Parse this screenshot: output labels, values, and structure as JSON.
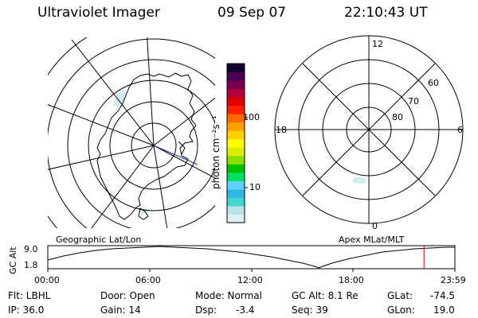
{
  "header": {
    "title": "Ultraviolet Imager",
    "date": "09 Sep 07",
    "time": "22:10:43 UT"
  },
  "colorbar": {
    "unit_label": "photon cm⁻²s⁻¹",
    "tick_high": "100",
    "tick_low": "10",
    "colors": [
      "#dff1f4",
      "#b9e4ea",
      "#43d6cf",
      "#2fb8e6",
      "#5fd0ff",
      "#00e060",
      "#00c000",
      "#88e000",
      "#d8f000",
      "#ffff00",
      "#ffd000",
      "#ffa000",
      "#ff6a00",
      "#ff2000",
      "#e00000",
      "#b4003c",
      "#780050",
      "#4a0050",
      "#120030"
    ]
  },
  "left_map": {
    "caption": "Geographic Lat/Lon"
  },
  "right_map": {
    "caption": "Apex MLat/MLT",
    "mlt_labels": {
      "top": "12",
      "left": "18",
      "right": "6",
      "bottom": "0"
    },
    "lat_labels": [
      "60",
      "70",
      "80"
    ]
  },
  "altitude_plot": {
    "ylabel": "GC Alt",
    "ytick_high": "9.0",
    "ytick_low": "1.8",
    "xticks": [
      "00:00",
      "06:00",
      "12:00",
      "18:00",
      "23:59"
    ],
    "current_time_marker_hours": 22.18
  },
  "footer": {
    "filter": "Flt: LBHL",
    "ip": "IP: 36.0",
    "door": "Door: Open",
    "gain": "Gain: 14",
    "mode": "Mode: Normal",
    "dsp_label": "Dsp:",
    "dsp_value": "-3.4",
    "gc_alt": "GC Alt: 8.1 Re",
    "seq": "Seq: 39",
    "glat_label": "GLat:",
    "glat_value": "-74.5",
    "glon_label": "GLon:",
    "glon_value": "19.0"
  }
}
